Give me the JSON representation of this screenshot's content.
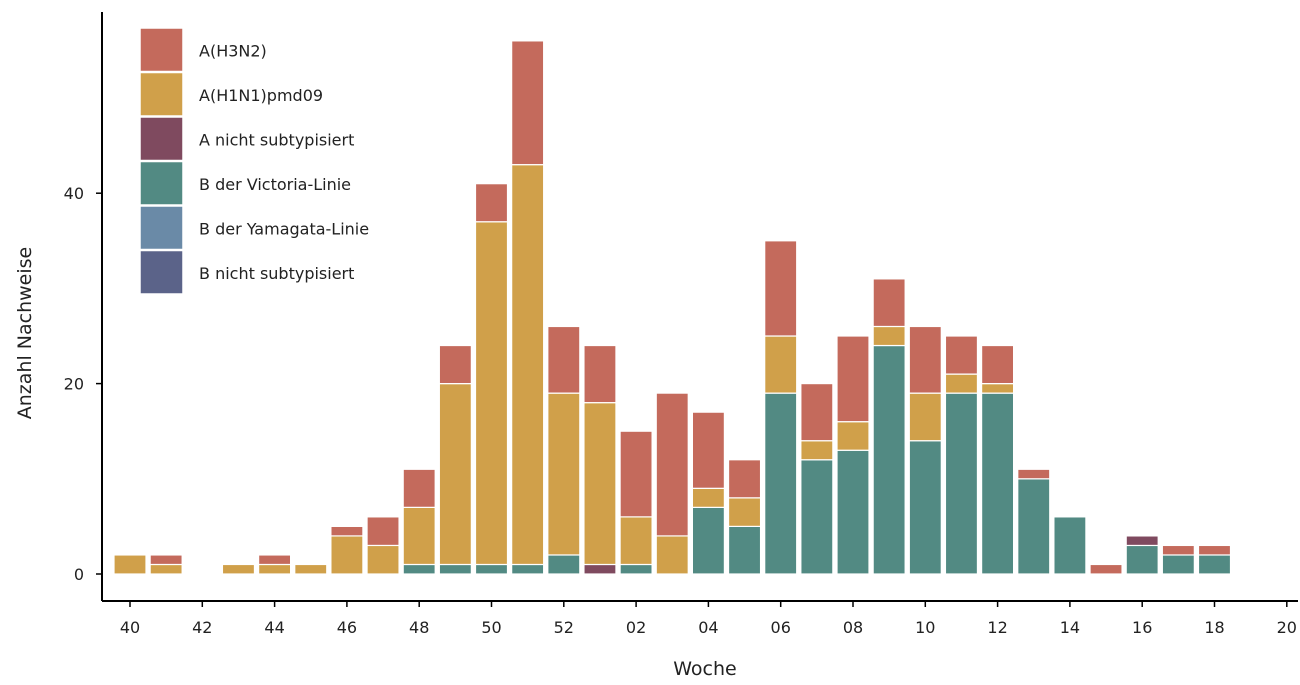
{
  "chart_data": {
    "type": "bar",
    "stacked": true,
    "xlabel": "Woche",
    "ylabel": "Anzahl Nachweise",
    "ylim": [
      0,
      57
    ],
    "yticks": [
      0,
      20,
      40
    ],
    "xlim_index": [
      -0.7,
      32.7
    ],
    "xtick_labels": [
      "40",
      "42",
      "44",
      "46",
      "48",
      "50",
      "52",
      "02",
      "04",
      "06",
      "08",
      "10",
      "12",
      "14",
      "16",
      "18",
      "20"
    ],
    "categories": [
      "40",
      "41",
      "42",
      "43",
      "44",
      "45",
      "46",
      "47",
      "48",
      "49",
      "50",
      "51",
      "52",
      "53",
      "01",
      "02",
      "03",
      "04",
      "05",
      "06",
      "07",
      "08",
      "09",
      "10",
      "11",
      "12",
      "13",
      "14",
      "15",
      "16",
      "17",
      "18"
    ],
    "grid": false,
    "legend_position": "top-left",
    "series": [
      {
        "name": "B nicht subtypisiert",
        "color": "#5b6389",
        "values": [
          0,
          0,
          0,
          0,
          0,
          0,
          0,
          0,
          0,
          0,
          0,
          0,
          0,
          0,
          0,
          0,
          0,
          0,
          0,
          0,
          0,
          0,
          0,
          0,
          0,
          0,
          0,
          0,
          0,
          0,
          0,
          0
        ]
      },
      {
        "name": "B der Yamagata-Linie",
        "color": "#6a8aa7",
        "values": [
          0,
          0,
          0,
          0,
          0,
          0,
          0,
          0,
          0,
          0,
          0,
          0,
          0,
          0,
          0,
          0,
          0,
          0,
          0,
          0,
          0,
          0,
          0,
          0,
          0,
          0,
          0,
          0,
          0,
          0,
          0,
          0
        ]
      },
      {
        "name": "B der Victoria-Linie",
        "color": "#528a83",
        "values": [
          0,
          0,
          0,
          0,
          0,
          0,
          0,
          0,
          1,
          1,
          1,
          1,
          2,
          0,
          1,
          0,
          7,
          5,
          19,
          12,
          13,
          24,
          14,
          19,
          19,
          10,
          6,
          0,
          3,
          2,
          2,
          0
        ]
      },
      {
        "name": "A nicht subtypisiert",
        "color": "#7f4a5f",
        "values": [
          0,
          0,
          0,
          0,
          0,
          0,
          0,
          0,
          0,
          0,
          0,
          0,
          0,
          1,
          0,
          0,
          0,
          0,
          0,
          0,
          0,
          0,
          0,
          0,
          0,
          0,
          0,
          0,
          1,
          0,
          0,
          0
        ]
      },
      {
        "name": "A(H1N1)pmd09",
        "color": "#d0a04a",
        "values": [
          2,
          1,
          0,
          1,
          1,
          1,
          4,
          3,
          6,
          19,
          36,
          42,
          17,
          17,
          5,
          4,
          2,
          3,
          6,
          2,
          3,
          2,
          5,
          2,
          1,
          0,
          0,
          0,
          0,
          0,
          0,
          0
        ]
      },
      {
        "name": "A(H3N2)",
        "color": "#c46a5c",
        "values": [
          0,
          1,
          0,
          0,
          1,
          0,
          1,
          3,
          4,
          4,
          4,
          13,
          7,
          6,
          9,
          15,
          8,
          4,
          10,
          6,
          9,
          5,
          7,
          4,
          4,
          1,
          0,
          1,
          0,
          1,
          1,
          0
        ]
      }
    ],
    "legend_order": [
      "A(H3N2)",
      "A(H1N1)pmd09",
      "A nicht subtypisiert",
      "B der Victoria-Linie",
      "B der Yamagata-Linie",
      "B nicht subtypisiert"
    ]
  }
}
